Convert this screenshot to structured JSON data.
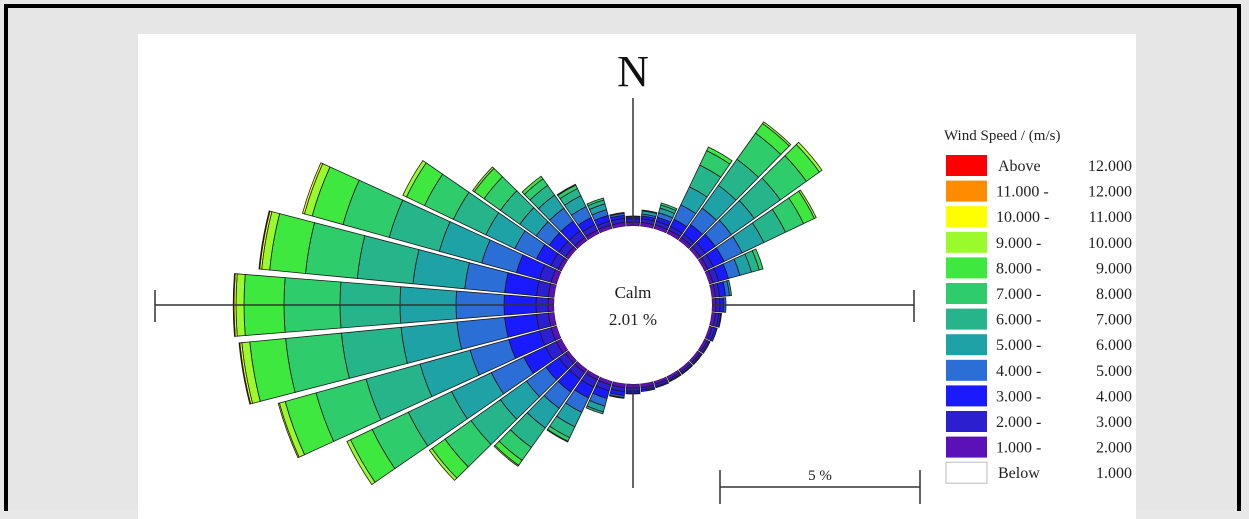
{
  "chart_data": {
    "type": "wind-rose",
    "north_label": "N",
    "calm": {
      "label": "Calm",
      "value_text": "2.01 %",
      "value": 2.01
    },
    "scale": {
      "label": "5 %",
      "value": 5
    },
    "legend": {
      "title": "Wind Speed / (m/s)",
      "bins": [
        {
          "lower": "Above",
          "upper": "12.000",
          "color": "#ff0000"
        },
        {
          "lower": "11.000 -",
          "upper": "12.000",
          "color": "#ff8c00"
        },
        {
          "lower": "10.000 -",
          "upper": "11.000",
          "color": "#ffff00"
        },
        {
          "lower": "9.000 -",
          "upper": "10.000",
          "color": "#9afa2c"
        },
        {
          "lower": "8.000 -",
          "upper": "9.000",
          "color": "#3ee83e"
        },
        {
          "lower": "7.000 -",
          "upper": "8.000",
          "color": "#2ecc6a"
        },
        {
          "lower": "6.000 -",
          "upper": "7.000",
          "color": "#26b48a"
        },
        {
          "lower": "5.000 -",
          "upper": "6.000",
          "color": "#1ea2a6"
        },
        {
          "lower": "4.000 -",
          "upper": "5.000",
          "color": "#2a6ed6"
        },
        {
          "lower": "3.000 -",
          "upper": "4.000",
          "color": "#1a1aff"
        },
        {
          "lower": "2.000 -",
          "upper": "3.000",
          "color": "#2b1fcf"
        },
        {
          "lower": "1.000 -",
          "upper": "2.000",
          "color": "#5a12b8"
        },
        {
          "lower": "Below",
          "upper": "1.000",
          "color": "#ffffff"
        }
      ]
    },
    "sector_count": 36,
    "sector_width_deg": 10,
    "bins_order": "inner-to-outer: 1-2, 2-3, 3-4, 4-5, 5-6, 6-7, 7-8, 8-9, 9-10, 10-11, 11-12, >12 (m/s)",
    "sectors": [
      {
        "dir": 0,
        "values": [
          0.1,
          0.08,
          0.05,
          0.02,
          0,
          0,
          0,
          0,
          0,
          0,
          0,
          0
        ]
      },
      {
        "dir": 10,
        "values": [
          0.1,
          0.09,
          0.07,
          0.05,
          0.08,
          0.02,
          0,
          0,
          0,
          0,
          0,
          0
        ]
      },
      {
        "dir": 20,
        "values": [
          0.1,
          0.1,
          0.1,
          0.12,
          0.12,
          0.08,
          0.05,
          0,
          0,
          0,
          0,
          0
        ]
      },
      {
        "dir": 30,
        "values": [
          0.1,
          0.1,
          0.2,
          0.4,
          0.5,
          0.6,
          0.4,
          0.1,
          0,
          0,
          0,
          0
        ]
      },
      {
        "dir": 40,
        "values": [
          0.1,
          0.1,
          0.3,
          0.5,
          0.7,
          0.8,
          0.8,
          0.3,
          0.05,
          0,
          0,
          0
        ]
      },
      {
        "dir": 50,
        "values": [
          0.1,
          0.15,
          0.3,
          0.5,
          0.7,
          0.8,
          0.8,
          0.4,
          0.08,
          0,
          0,
          0
        ]
      },
      {
        "dir": 60,
        "values": [
          0.1,
          0.15,
          0.3,
          0.5,
          0.6,
          0.6,
          0.5,
          0.3,
          0.05,
          0,
          0,
          0
        ]
      },
      {
        "dir": 70,
        "values": [
          0.1,
          0.15,
          0.25,
          0.3,
          0.3,
          0.2,
          0.1,
          0,
          0,
          0,
          0,
          0
        ]
      },
      {
        "dir": 80,
        "values": [
          0.1,
          0.1,
          0.15,
          0.1,
          0.05,
          0,
          0,
          0,
          0,
          0,
          0,
          0
        ]
      },
      {
        "dir": 90,
        "values": [
          0.1,
          0.1,
          0.1,
          0.05,
          0,
          0,
          0,
          0,
          0,
          0,
          0,
          0
        ]
      },
      {
        "dir": 100,
        "values": [
          0.1,
          0.08,
          0.05,
          0.02,
          0,
          0,
          0,
          0,
          0,
          0,
          0,
          0
        ]
      },
      {
        "dir": 110,
        "values": [
          0.08,
          0.08,
          0.05,
          0,
          0,
          0,
          0,
          0,
          0,
          0,
          0,
          0
        ]
      },
      {
        "dir": 120,
        "values": [
          0.08,
          0.05,
          0.03,
          0,
          0,
          0,
          0,
          0,
          0,
          0,
          0,
          0
        ]
      },
      {
        "dir": 130,
        "values": [
          0.08,
          0.05,
          0.02,
          0,
          0,
          0,
          0,
          0,
          0,
          0,
          0,
          0
        ]
      },
      {
        "dir": 140,
        "values": [
          0.08,
          0.05,
          0.02,
          0,
          0,
          0,
          0,
          0,
          0,
          0,
          0,
          0
        ]
      },
      {
        "dir": 150,
        "values": [
          0.08,
          0.05,
          0.02,
          0,
          0,
          0,
          0,
          0,
          0,
          0,
          0,
          0
        ]
      },
      {
        "dir": 160,
        "values": [
          0.08,
          0.06,
          0.03,
          0,
          0,
          0,
          0,
          0,
          0,
          0,
          0,
          0
        ]
      },
      {
        "dir": 170,
        "values": [
          0.1,
          0.06,
          0.04,
          0,
          0,
          0,
          0,
          0,
          0,
          0,
          0,
          0
        ]
      },
      {
        "dir": 180,
        "values": [
          0.1,
          0.08,
          0.05,
          0.02,
          0,
          0,
          0,
          0,
          0,
          0,
          0,
          0
        ]
      },
      {
        "dir": 190,
        "values": [
          0.1,
          0.1,
          0.1,
          0.05,
          0.02,
          0,
          0,
          0,
          0,
          0,
          0,
          0
        ]
      },
      {
        "dir": 200,
        "values": [
          0.1,
          0.15,
          0.2,
          0.2,
          0.15,
          0.05,
          0,
          0,
          0,
          0,
          0,
          0
        ]
      },
      {
        "dir": 210,
        "values": [
          0.1,
          0.2,
          0.3,
          0.4,
          0.4,
          0.3,
          0.1,
          0.02,
          0,
          0,
          0,
          0
        ]
      },
      {
        "dir": 220,
        "values": [
          0.1,
          0.2,
          0.4,
          0.5,
          0.6,
          0.6,
          0.4,
          0.15,
          0.03,
          0,
          0,
          0
        ]
      },
      {
        "dir": 230,
        "values": [
          0.1,
          0.2,
          0.4,
          0.6,
          0.8,
          0.9,
          0.8,
          0.4,
          0.08,
          0,
          0,
          0
        ]
      },
      {
        "dir": 240,
        "values": [
          0.15,
          0.3,
          0.6,
          0.9,
          1.1,
          1.2,
          1.0,
          0.6,
          0.1,
          0,
          0,
          0
        ]
      },
      {
        "dir": 250,
        "values": [
          0.15,
          0.3,
          0.8,
          1.0,
          1.3,
          1.4,
          1.3,
          0.8,
          0.15,
          0.03,
          0,
          0
        ]
      },
      {
        "dir": 260,
        "values": [
          0.15,
          0.3,
          0.8,
          1.2,
          1.4,
          1.5,
          1.4,
          0.9,
          0.2,
          0.05,
          0.02,
          0
        ]
      },
      {
        "dir": 270,
        "values": [
          0.15,
          0.3,
          0.8,
          1.2,
          1.4,
          1.5,
          1.4,
          1.0,
          0.2,
          0.05,
          0.02,
          0
        ]
      },
      {
        "dir": 280,
        "values": [
          0.15,
          0.3,
          0.8,
          1.0,
          1.3,
          1.4,
          1.3,
          0.9,
          0.2,
          0.05,
          0.02,
          0
        ]
      },
      {
        "dir": 290,
        "values": [
          0.15,
          0.3,
          0.6,
          0.9,
          1.1,
          1.3,
          1.2,
          0.8,
          0.2,
          0.05,
          0,
          0
        ]
      },
      {
        "dir": 300,
        "values": [
          0.1,
          0.2,
          0.4,
          0.6,
          0.8,
          0.9,
          0.8,
          0.5,
          0.1,
          0,
          0,
          0
        ]
      },
      {
        "dir": 310,
        "values": [
          0.1,
          0.2,
          0.3,
          0.4,
          0.5,
          0.6,
          0.5,
          0.3,
          0.05,
          0,
          0,
          0
        ]
      },
      {
        "dir": 320,
        "values": [
          0.1,
          0.2,
          0.3,
          0.4,
          0.4,
          0.3,
          0.2,
          0.08,
          0,
          0,
          0,
          0
        ]
      },
      {
        "dir": 330,
        "values": [
          0.1,
          0.15,
          0.2,
          0.3,
          0.3,
          0.2,
          0.1,
          0.02,
          0,
          0,
          0,
          0
        ]
      },
      {
        "dir": 340,
        "values": [
          0.1,
          0.1,
          0.15,
          0.15,
          0.15,
          0.1,
          0.05,
          0,
          0,
          0,
          0,
          0
        ]
      },
      {
        "dir": 350,
        "values": [
          0.1,
          0.1,
          0.08,
          0.05,
          0.02,
          0,
          0,
          0,
          0,
          0,
          0,
          0
        ]
      }
    ]
  }
}
